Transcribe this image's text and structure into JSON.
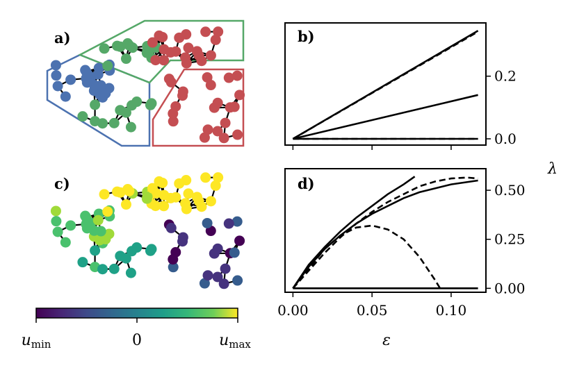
{
  "panels": {
    "a": {
      "label": "a)",
      "cluster_colors": [
        "#4c72b0",
        "#55a868",
        "#c44e52"
      ]
    },
    "b": {
      "label": "b)"
    },
    "c": {
      "label": "c)"
    },
    "d": {
      "label": "d)"
    }
  },
  "colorbar": {
    "label_min_base": "u",
    "label_min_sub": "min",
    "label_mid": "0",
    "label_max_base": "u",
    "label_max_sub": "max",
    "colormap": "viridis"
  },
  "axes": {
    "xlabel": "ε",
    "ylabel": "λ",
    "xticks": [
      "0.00",
      "0.05",
      "0.10"
    ],
    "b_yticks": [
      "0.0",
      "0.2"
    ],
    "d_yticks": [
      "0.00",
      "0.25",
      "0.50"
    ]
  },
  "chart_data": [
    {
      "panel": "b",
      "type": "line",
      "xlim": [
        -0.005,
        0.122
      ],
      "ylim": [
        -0.02,
        0.37
      ],
      "grid": false,
      "series": [
        {
          "style": "solid",
          "x": [
            0.0,
            0.117
          ],
          "y": [
            0.0,
            0.345
          ]
        },
        {
          "style": "dashed",
          "x": [
            0.0,
            0.117
          ],
          "y": [
            0.0,
            0.342
          ]
        },
        {
          "style": "solid",
          "x": [
            0.0,
            0.117
          ],
          "y": [
            0.0,
            0.14
          ]
        },
        {
          "style": "solid",
          "x": [
            0.0,
            0.117
          ],
          "y": [
            0.0,
            0.0
          ]
        },
        {
          "style": "dashed",
          "x": [
            0.0,
            0.117
          ],
          "y": [
            0.0,
            0.0
          ]
        }
      ]
    },
    {
      "panel": "d",
      "type": "line",
      "xlim": [
        -0.005,
        0.122
      ],
      "ylim": [
        -0.02,
        0.61
      ],
      "grid": false,
      "series": [
        {
          "style": "solid",
          "x": [
            0.0,
            0.01,
            0.02,
            0.03,
            0.04,
            0.05,
            0.06,
            0.07,
            0.077
          ],
          "y": [
            0.0,
            0.12,
            0.21,
            0.29,
            0.36,
            0.42,
            0.48,
            0.53,
            0.57
          ]
        },
        {
          "style": "solid",
          "x": [
            0.0,
            0.01,
            0.02,
            0.03,
            0.04,
            0.05,
            0.06,
            0.07,
            0.08,
            0.09,
            0.1,
            0.117
          ],
          "y": [
            0.0,
            0.11,
            0.2,
            0.27,
            0.33,
            0.38,
            0.42,
            0.46,
            0.49,
            0.51,
            0.53,
            0.55
          ]
        },
        {
          "style": "dashed",
          "x": [
            0.0,
            0.01,
            0.02,
            0.03,
            0.04,
            0.05,
            0.06,
            0.07,
            0.08,
            0.09,
            0.1,
            0.11,
            0.117
          ],
          "y": [
            0.0,
            0.09,
            0.18,
            0.26,
            0.33,
            0.39,
            0.44,
            0.48,
            0.52,
            0.545,
            0.56,
            0.565,
            0.56
          ]
        },
        {
          "style": "dashed",
          "x": [
            0.0,
            0.01,
            0.02,
            0.03,
            0.04,
            0.05,
            0.06,
            0.07,
            0.08,
            0.09,
            0.093
          ],
          "y": [
            0.0,
            0.1,
            0.2,
            0.27,
            0.31,
            0.32,
            0.3,
            0.25,
            0.16,
            0.04,
            0.0
          ]
        },
        {
          "style": "solid",
          "x": [
            0.0,
            0.117
          ],
          "y": [
            0.0,
            0.0
          ]
        }
      ]
    }
  ]
}
